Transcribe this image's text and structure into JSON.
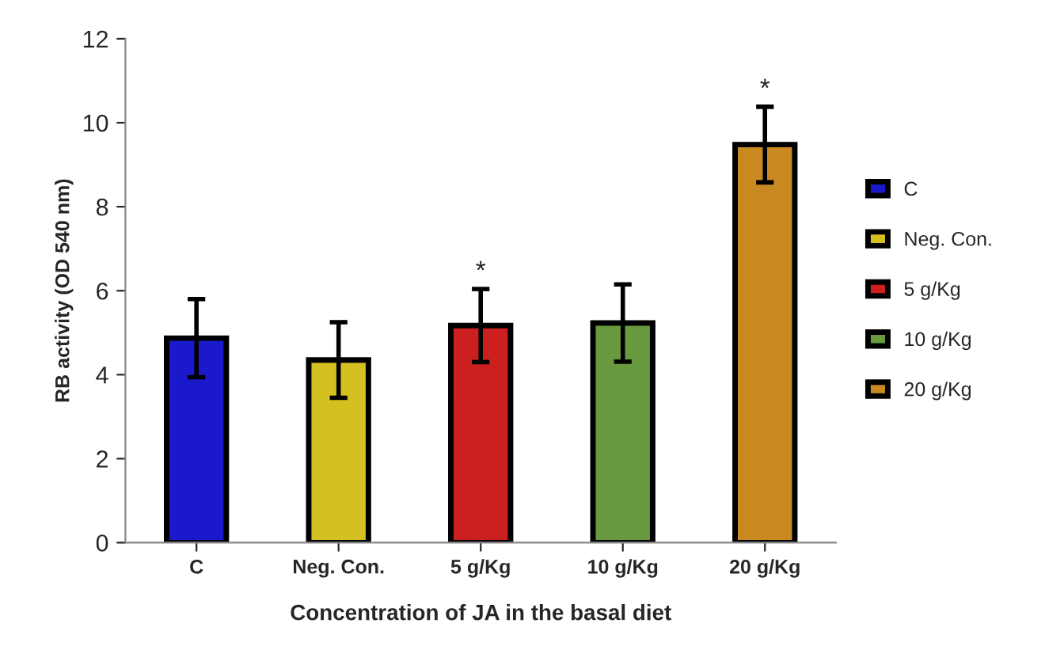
{
  "chart_data": {
    "type": "bar",
    "xlabel": "Concentration of JA in the basal diet",
    "ylabel": "RB activity (OD 540 nm)",
    "categories": [
      "C",
      "Neg. Con.",
      "5 g/Kg",
      "10 g/Kg",
      "20 g/Kg"
    ],
    "series": [
      {
        "name": "C",
        "color": "#1a1acc",
        "values": [
          4.87,
          null,
          null,
          null,
          null
        ],
        "errors": [
          0.93,
          null,
          null,
          null,
          null
        ]
      },
      {
        "name": "Neg. Con.",
        "color": "#d4c020",
        "values": [
          null,
          4.35,
          null,
          null,
          null
        ],
        "errors": [
          null,
          0.9,
          null,
          null,
          null
        ]
      },
      {
        "name": "5 g/Kg",
        "color": "#cc2020",
        "values": [
          null,
          null,
          5.17,
          null,
          null
        ],
        "errors": [
          null,
          null,
          0.87,
          null,
          null
        ]
      },
      {
        "name": "10 g/Kg",
        "color": "#6a9a40",
        "values": [
          null,
          null,
          null,
          5.23,
          null
        ],
        "errors": [
          null,
          null,
          null,
          0.92,
          null
        ]
      },
      {
        "name": "20 g/Kg",
        "color": "#c88a20",
        "values": [
          null,
          null,
          null,
          null,
          9.48
        ],
        "errors": [
          null,
          null,
          null,
          null,
          0.9
        ]
      }
    ],
    "ylim": [
      0,
      12
    ],
    "yticks": [
      0,
      2,
      4,
      6,
      8,
      10,
      12
    ],
    "grid": false,
    "legend": "right",
    "annotations": [
      {
        "text": "*",
        "x": "5 g/Kg",
        "y": 6.04
      },
      {
        "text": "*",
        "x": "20 g/Kg",
        "y": 10.38
      }
    ]
  }
}
